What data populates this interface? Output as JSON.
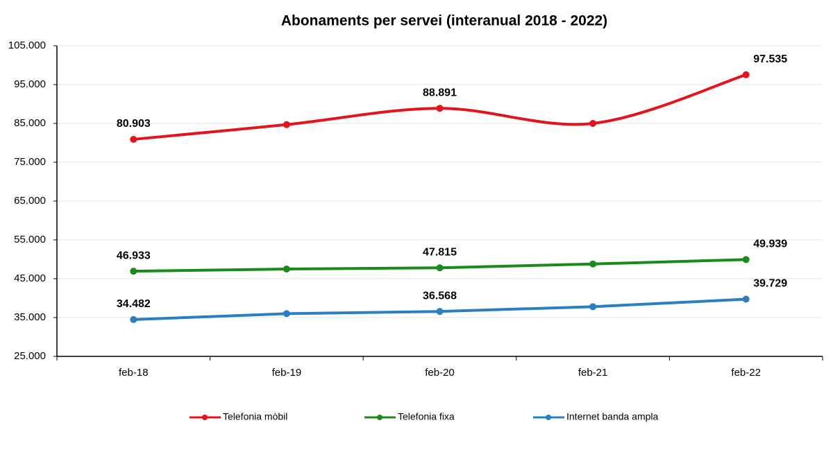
{
  "chart_data": {
    "type": "line",
    "title": "Abonaments per servei (interanual 2018 - 2022)",
    "categories": [
      "feb-18",
      "feb-19",
      "feb-20",
      "feb-21",
      "feb-22"
    ],
    "ylim": [
      25000,
      105000
    ],
    "yticks": [
      {
        "value": 25000,
        "label": "25.000"
      },
      {
        "value": 35000,
        "label": "35.000"
      },
      {
        "value": 45000,
        "label": "45.000"
      },
      {
        "value": 55000,
        "label": "55.000"
      },
      {
        "value": 65000,
        "label": "65.000"
      },
      {
        "value": 75000,
        "label": "75.000"
      },
      {
        "value": 85000,
        "label": "85.000"
      },
      {
        "value": 95000,
        "label": "95.000"
      },
      {
        "value": 105000,
        "label": "105.000"
      }
    ],
    "grid": true,
    "legend": "bottom",
    "series": [
      {
        "name": "Telefonia mòbil",
        "color": "#e3141b",
        "smooth": true,
        "values": [
          80903,
          84700,
          88891,
          85000,
          97535
        ],
        "value_labels": [
          "80.903",
          null,
          "88.891",
          null,
          "97.535"
        ]
      },
      {
        "name": "Telefonia fixa",
        "color": "#1a8a1a",
        "smooth": false,
        "values": [
          46933,
          47500,
          47815,
          48800,
          49939
        ],
        "value_labels": [
          "46.933",
          null,
          "47.815",
          null,
          "49.939"
        ]
      },
      {
        "name": "Internet banda ampla",
        "color": "#2a7fc0",
        "smooth": false,
        "values": [
          34482,
          36000,
          36568,
          37800,
          39729
        ],
        "value_labels": [
          "34.482",
          null,
          "36.568",
          null,
          "39.729"
        ]
      }
    ]
  }
}
